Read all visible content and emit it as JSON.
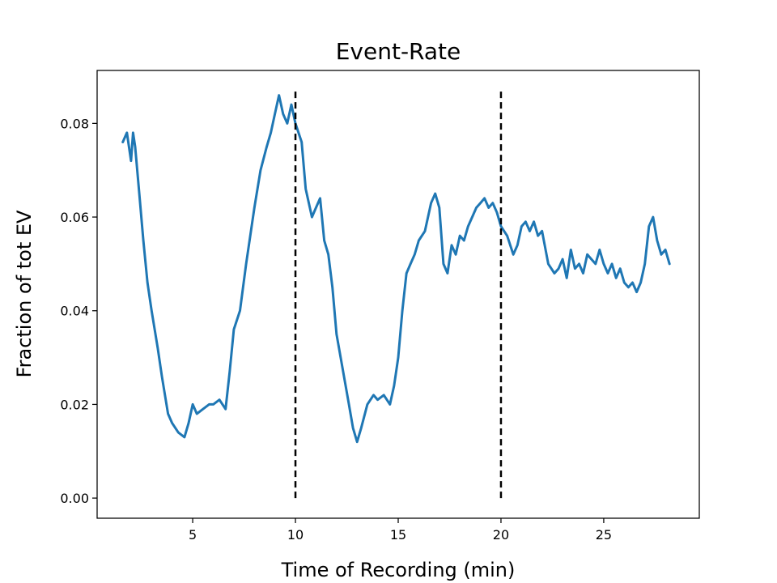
{
  "chart_data": {
    "type": "line",
    "title": "Event-Rate",
    "xlabel": "Time of Recording (min)",
    "ylabel": "Fraction of tot EV",
    "xlim": [
      0.35,
      29.65
    ],
    "ylim": [
      -0.0043,
      0.0913
    ],
    "x_ticks": [
      5,
      10,
      15,
      20,
      25
    ],
    "y_ticks": [
      0.0,
      0.02,
      0.04,
      0.06,
      0.08
    ],
    "x_tick_labels": [
      "5",
      "10",
      "15",
      "20",
      "25"
    ],
    "y_tick_labels": [
      "0.00",
      "0.02",
      "0.04",
      "0.06",
      "0.08"
    ],
    "grid": false,
    "series": [
      {
        "color": "#1f77b4",
        "x": [
          1.6,
          1.8,
          2.0,
          2.1,
          2.2,
          2.4,
          2.6,
          2.8,
          3.0,
          3.3,
          3.5,
          3.8,
          4.0,
          4.3,
          4.6,
          4.8,
          5.0,
          5.2,
          5.5,
          5.8,
          6.0,
          6.3,
          6.6,
          6.8,
          7.0,
          7.3,
          7.6,
          8.0,
          8.3,
          8.6,
          8.8,
          9.0,
          9.2,
          9.4,
          9.6,
          9.8,
          10.0,
          10.3,
          10.5,
          10.8,
          11.0,
          11.2,
          11.4,
          11.6,
          11.8,
          12.0,
          12.2,
          12.4,
          12.6,
          12.8,
          13.0,
          13.2,
          13.5,
          13.8,
          14.0,
          14.3,
          14.6,
          14.8,
          15.0,
          15.2,
          15.4,
          15.6,
          15.8,
          16.0,
          16.3,
          16.6,
          16.8,
          17.0,
          17.2,
          17.4,
          17.6,
          17.8,
          18.0,
          18.2,
          18.4,
          18.6,
          18.8,
          19.0,
          19.2,
          19.4,
          19.6,
          19.8,
          20.0,
          20.3,
          20.6,
          20.8,
          21.0,
          21.2,
          21.4,
          21.6,
          21.8,
          22.0,
          22.3,
          22.6,
          22.8,
          23.0,
          23.2,
          23.4,
          23.6,
          23.8,
          24.0,
          24.2,
          24.4,
          24.6,
          24.8,
          25.0,
          25.2,
          25.4,
          25.6,
          25.8,
          26.0,
          26.2,
          26.4,
          26.6,
          26.8,
          27.0,
          27.2,
          27.4,
          27.6,
          27.8,
          28.0,
          28.2
        ],
        "y": [
          0.076,
          0.078,
          0.072,
          0.078,
          0.075,
          0.065,
          0.055,
          0.046,
          0.04,
          0.032,
          0.026,
          0.018,
          0.016,
          0.014,
          0.013,
          0.016,
          0.02,
          0.018,
          0.019,
          0.02,
          0.02,
          0.021,
          0.019,
          0.027,
          0.036,
          0.04,
          0.05,
          0.062,
          0.07,
          0.075,
          0.078,
          0.082,
          0.086,
          0.082,
          0.08,
          0.084,
          0.08,
          0.076,
          0.066,
          0.06,
          0.062,
          0.064,
          0.055,
          0.052,
          0.045,
          0.035,
          0.03,
          0.025,
          0.02,
          0.015,
          0.012,
          0.015,
          0.02,
          0.022,
          0.021,
          0.022,
          0.02,
          0.024,
          0.03,
          0.04,
          0.048,
          0.05,
          0.052,
          0.055,
          0.057,
          0.063,
          0.065,
          0.062,
          0.05,
          0.048,
          0.054,
          0.052,
          0.056,
          0.055,
          0.058,
          0.06,
          0.062,
          0.063,
          0.064,
          0.062,
          0.063,
          0.061,
          0.058,
          0.056,
          0.052,
          0.054,
          0.058,
          0.059,
          0.057,
          0.059,
          0.056,
          0.057,
          0.05,
          0.048,
          0.049,
          0.051,
          0.047,
          0.053,
          0.049,
          0.05,
          0.048,
          0.052,
          0.051,
          0.05,
          0.053,
          0.05,
          0.048,
          0.05,
          0.047,
          0.049,
          0.046,
          0.045,
          0.046,
          0.044,
          0.046,
          0.05,
          0.058,
          0.06,
          0.055,
          0.052,
          0.053,
          0.05
        ]
      }
    ],
    "vlines": [
      {
        "x": 10,
        "ymin": 0.0,
        "ymax": 0.087,
        "style": "dashed",
        "color": "#000000"
      },
      {
        "x": 20,
        "ymin": 0.0,
        "ymax": 0.087,
        "style": "dashed",
        "color": "#000000"
      }
    ]
  }
}
